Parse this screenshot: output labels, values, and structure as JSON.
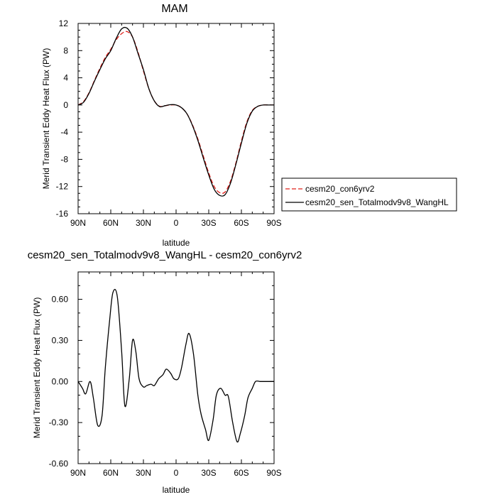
{
  "chart_data": [
    {
      "type": "line",
      "title": "MAM",
      "xlabel": "latitude",
      "ylabel": "Merid Transient Eddy Heat Flux (PW)",
      "xlim": [
        90,
        -90
      ],
      "ylim": [
        -16,
        12
      ],
      "x_ticks": [
        {
          "value": 90,
          "label": "90N"
        },
        {
          "value": 60,
          "label": "60N"
        },
        {
          "value": 30,
          "label": "30N"
        },
        {
          "value": 0,
          "label": "0"
        },
        {
          "value": -30,
          "label": "30S"
        },
        {
          "value": -60,
          "label": "60S"
        },
        {
          "value": -90,
          "label": "90S"
        }
      ],
      "y_ticks": [
        {
          "value": 12,
          "label": "12"
        },
        {
          "value": 8,
          "label": "8"
        },
        {
          "value": 4,
          "label": "4"
        },
        {
          "value": 0,
          "label": "0"
        },
        {
          "value": -4,
          "label": "-4"
        },
        {
          "value": -8,
          "label": "-8"
        },
        {
          "value": -12,
          "label": "-12"
        },
        {
          "value": -16,
          "label": "-16"
        }
      ],
      "legend_position": "right",
      "series": [
        {
          "name": "cesm20_con6yrv2",
          "color": "#e0201b",
          "dash": "dashed",
          "x": [
            90,
            85,
            80,
            75,
            70,
            65,
            60,
            55,
            50,
            45,
            40,
            35,
            30,
            25,
            20,
            15,
            10,
            5,
            0,
            -5,
            -10,
            -15,
            -20,
            -25,
            -30,
            -35,
            -40,
            -45,
            -50,
            -55,
            -60,
            -65,
            -70,
            -75,
            -80,
            -85,
            -90
          ],
          "y": [
            0.0,
            0.5,
            1.8,
            3.6,
            5.4,
            7.0,
            8.2,
            9.6,
            10.5,
            10.8,
            10.0,
            7.8,
            5.0,
            2.4,
            0.6,
            -0.2,
            -0.1,
            0.0,
            0.0,
            -0.4,
            -1.3,
            -2.9,
            -5.0,
            -7.5,
            -10.0,
            -12.0,
            -12.9,
            -12.8,
            -11.2,
            -8.5,
            -5.3,
            -2.5,
            -0.8,
            -0.2,
            0.0,
            0.0,
            0.0
          ]
        },
        {
          "name": "cesm20_sen_Totalmodv9v8_WangHL",
          "color": "#000000",
          "dash": "solid",
          "x": [
            90,
            85,
            80,
            75,
            70,
            65,
            60,
            55,
            50,
            45,
            40,
            35,
            30,
            25,
            20,
            15,
            10,
            5,
            0,
            -5,
            -10,
            -15,
            -20,
            -25,
            -30,
            -35,
            -40,
            -45,
            -50,
            -55,
            -60,
            -65,
            -70,
            -75,
            -80,
            -85,
            -90
          ],
          "y": [
            0.0,
            0.4,
            1.7,
            3.5,
            5.2,
            6.8,
            8.0,
            9.8,
            11.2,
            11.3,
            10.0,
            7.6,
            5.2,
            2.4,
            0.6,
            -0.25,
            -0.1,
            0.05,
            0.0,
            -0.4,
            -1.3,
            -3.0,
            -5.2,
            -7.8,
            -10.3,
            -12.4,
            -13.3,
            -13.2,
            -11.5,
            -8.7,
            -5.6,
            -2.7,
            -0.9,
            -0.2,
            0.0,
            0.0,
            0.0
          ]
        }
      ]
    },
    {
      "type": "line",
      "title": "cesm20_sen_Totalmodv9v8_WangHL - cesm20_con6yrv2",
      "xlabel": "latitude",
      "ylabel": "Merid Transient Eddy Heat Flux (PW)",
      "xlim": [
        90,
        -90
      ],
      "ylim": [
        -0.6,
        0.8
      ],
      "x_ticks": [
        {
          "value": 90,
          "label": "90N"
        },
        {
          "value": 60,
          "label": "60N"
        },
        {
          "value": 30,
          "label": "30N"
        },
        {
          "value": 0,
          "label": "0"
        },
        {
          "value": -30,
          "label": "30S"
        },
        {
          "value": -60,
          "label": "60S"
        },
        {
          "value": -90,
          "label": "90S"
        }
      ],
      "y_ticks": [
        {
          "value": 0.6,
          "label": "0.60"
        },
        {
          "value": 0.3,
          "label": "0.30"
        },
        {
          "value": 0.0,
          "label": "0.00"
        },
        {
          "value": -0.3,
          "label": "-0.30"
        },
        {
          "value": -0.6,
          "label": "-0.60"
        }
      ],
      "series": [
        {
          "color": "#000000",
          "dash": "solid",
          "x": [
            90,
            86,
            83,
            79,
            76,
            72,
            68,
            65,
            61,
            58,
            54,
            50,
            47,
            43,
            40,
            37,
            34,
            30,
            27,
            23,
            20,
            16,
            12,
            9,
            5,
            2,
            -2,
            -5,
            -9,
            -12,
            -16,
            -20,
            -23,
            -27,
            -30,
            -34,
            -37,
            -41,
            -45,
            -48,
            -52,
            -56,
            -59,
            -63,
            -66,
            -70,
            -73,
            -77,
            -81,
            -84,
            -88,
            -90
          ],
          "y": [
            0.0,
            -0.05,
            -0.09,
            0.0,
            -0.12,
            -0.32,
            -0.25,
            0.1,
            0.45,
            0.65,
            0.62,
            0.22,
            -0.18,
            0.02,
            0.3,
            0.22,
            0.02,
            -0.04,
            -0.03,
            -0.02,
            -0.03,
            0.02,
            0.05,
            0.09,
            0.06,
            0.02,
            0.02,
            0.1,
            0.27,
            0.35,
            0.2,
            -0.1,
            -0.24,
            -0.35,
            -0.43,
            -0.28,
            -0.1,
            -0.05,
            -0.1,
            -0.11,
            -0.3,
            -0.44,
            -0.38,
            -0.25,
            -0.12,
            -0.05,
            0.0,
            0.0,
            0.0,
            0.0,
            0.0,
            0.0
          ]
        }
      ]
    }
  ]
}
